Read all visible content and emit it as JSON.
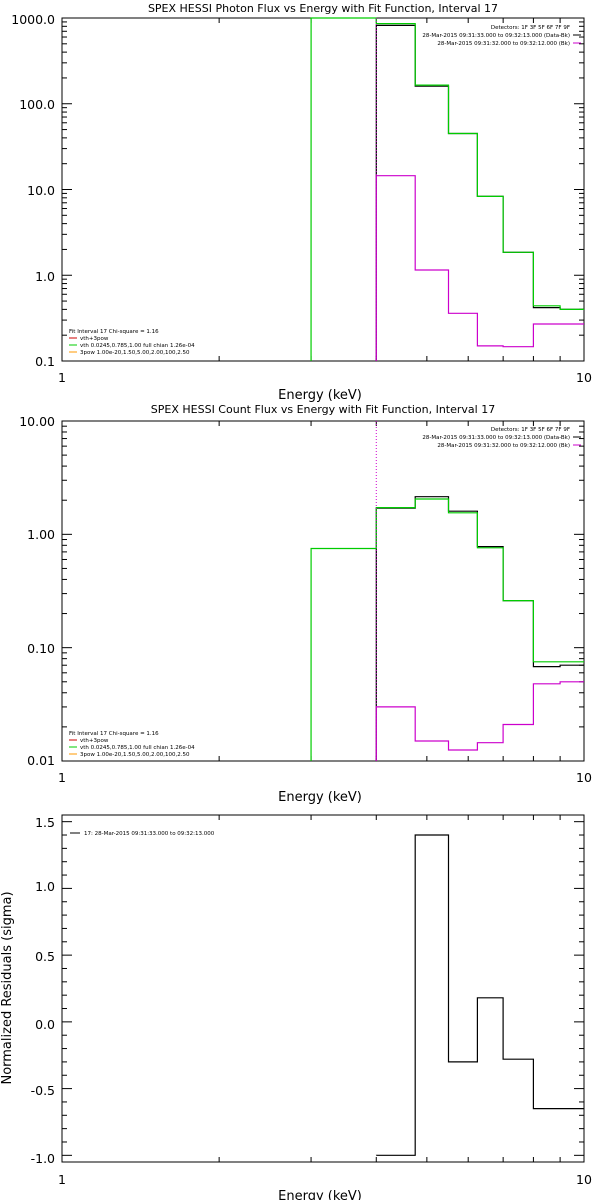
{
  "chart_data": [
    {
      "type": "line",
      "title": "SPEX HESSI Photon Flux vs Energy with Fit Function, Interval 17",
      "xlabel": "Energy (keV)",
      "ylabel": "",
      "xscale": "log",
      "yscale": "log",
      "xlim": [
        1,
        10
      ],
      "ylim": [
        0.1,
        1000
      ],
      "x_tick_labels": [
        "1",
        "10"
      ],
      "y_tick_labels": [
        "0.1",
        "1.0",
        "10.0",
        "100.0",
        "1000.0"
      ],
      "legend_top_right": [
        "Detectors: 1F 3F 5F 6F 7F 9F",
        "28-Mar-2015 09:31:33.000 to 09:32:13.000 (Data-Bk)",
        "28-Mar-2015 09:31:32.000 to 09:32:12.000 (Bk)"
      ],
      "legend_bottom_left": [
        "Fit Interval 17   Chi-square = 1.16",
        "vth+3pow",
        "vth 0.0245,0.785,1.00  full chian 1.26e-04",
        "3pow 1.00e-20,1.50,5.00,2.00,100,2.50"
      ],
      "colors": {
        "data": "#000000",
        "background": "#cc00cc",
        "vth": "#00cc00",
        "3pow": "#ff9900",
        "vth+3pow": "#cc0000"
      },
      "series": [
        {
          "role": "data",
          "edges": [
            4.0,
            4.75,
            5.5,
            6.25,
            7.0,
            8.0,
            9.0,
            10.0
          ],
          "values": [
            820,
            160,
            45,
            8.3,
            1.85,
            0.42,
            0.4
          ]
        },
        {
          "role": "vth",
          "edges": [
            3.0,
            4.0,
            4.75,
            5.5,
            6.25,
            7.0,
            8.0,
            9.0,
            10.0
          ],
          "values": [
            1000,
            860,
            165,
            45,
            8.3,
            1.85,
            0.44,
            0.4
          ]
        },
        {
          "role": "background",
          "edges": [
            4.0,
            4.75,
            5.5,
            6.25,
            7.0,
            8.0,
            9.0,
            10.0
          ],
          "values": [
            14.5,
            1.15,
            0.36,
            0.15,
            0.147,
            0.27,
            0.27
          ]
        }
      ]
    },
    {
      "type": "line",
      "title": "SPEX HESSI Count Flux vs Energy with Fit Function, Interval 17",
      "xlabel": "Energy (keV)",
      "ylabel": "",
      "xscale": "log",
      "yscale": "log",
      "xlim": [
        1,
        10
      ],
      "ylim": [
        0.01,
        10
      ],
      "x_tick_labels": [
        "1",
        "10"
      ],
      "y_tick_labels": [
        "0.01",
        "0.10",
        "1.00",
        "10.00"
      ],
      "legend_top_right": [
        "Detectors: 1F 3F 5F 6F 7F 9F",
        "28-Mar-2015 09:31:33.000 to 09:32:13.000 (Data-Bk)",
        "28-Mar-2015 09:31:32.000 to 09:32:12.000 (Bk)"
      ],
      "legend_bottom_left": [
        "Fit Interval 17   Chi-square = 1.16",
        "vth+3pow",
        "vth 0.0245,0.785,1.00  full chian 1.26e-04",
        "3pow 1.00e-20,1.50,5.00,2.00,100,2.50"
      ],
      "colors": {
        "data": "#000000",
        "background": "#cc00cc",
        "vth": "#00cc00",
        "3pow": "#ff9900",
        "vth+3pow": "#cc0000"
      },
      "series": [
        {
          "role": "data",
          "edges": [
            4.0,
            4.75,
            5.5,
            6.25,
            7.0,
            8.0,
            9.0,
            10.0
          ],
          "values": [
            1.7,
            2.15,
            1.6,
            0.78,
            0.26,
            0.068,
            0.07
          ]
        },
        {
          "role": "vth",
          "edges": [
            3.0,
            4.0,
            4.75,
            5.5,
            6.25,
            7.0,
            8.0,
            9.0,
            10.0
          ],
          "values": [
            0.75,
            1.72,
            2.05,
            1.55,
            0.76,
            0.26,
            0.075,
            0.075
          ]
        },
        {
          "role": "background",
          "edges": [
            4.0,
            4.75,
            5.5,
            6.25,
            7.0,
            8.0,
            9.0,
            10.0
          ],
          "values": [
            0.03,
            0.015,
            0.0125,
            0.0145,
            0.021,
            0.048,
            0.05
          ]
        }
      ]
    },
    {
      "type": "line",
      "title": "",
      "xlabel": "Energy (keV)",
      "ylabel": "Normalized Residuals (sigma)",
      "xscale": "log",
      "yscale": "linear",
      "xlim": [
        1,
        10
      ],
      "ylim": [
        -1.05,
        1.55
      ],
      "x_tick_labels": [
        "1",
        "10"
      ],
      "y_tick_labels": [
        "-1.0",
        "-0.5",
        "0.0",
        "0.5",
        "1.0",
        "1.5"
      ],
      "legend_top_left": "17: 28-Mar-2015 09:31:33.000 to 09:32:13.000",
      "series": [
        {
          "role": "residuals",
          "edges": [
            4.0,
            4.75,
            5.5,
            6.25,
            7.0,
            8.0,
            9.0,
            10.0
          ],
          "values": [
            -1.0,
            1.4,
            -0.3,
            0.18,
            -0.28,
            -0.65,
            -0.65
          ]
        }
      ]
    }
  ]
}
